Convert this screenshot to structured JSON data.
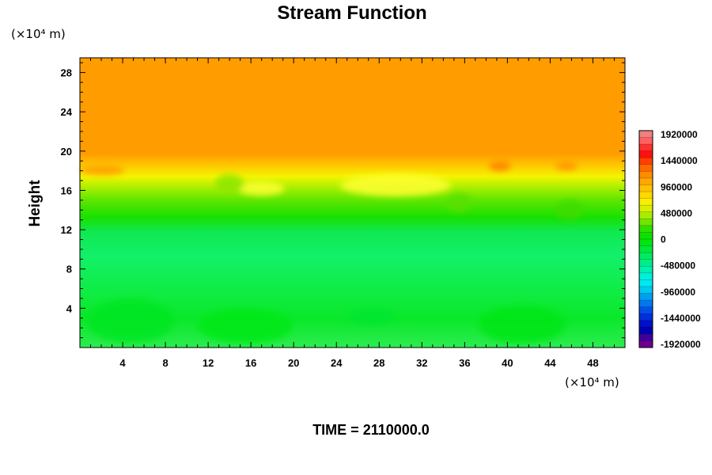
{
  "chart_data": {
    "type": "heatmap",
    "title": "Stream Function",
    "ylabel": "Height",
    "x_unit": "(×10⁴ m)",
    "y_unit": "(×10⁴ m)",
    "xlim": [
      0,
      51
    ],
    "ylim": [
      0,
      29.5
    ],
    "x_ticks": [
      4,
      8,
      12,
      16,
      20,
      24,
      28,
      32,
      36,
      40,
      44,
      48
    ],
    "y_ticks": [
      4,
      8,
      12,
      16,
      20,
      24,
      28
    ],
    "grid": false,
    "colorbar": {
      "placement": "right",
      "labels": [
        "1920000",
        "1440000",
        "960000",
        "480000",
        "0",
        "-480000",
        "-960000",
        "-1440000",
        "-1920000"
      ],
      "min": -1920000,
      "max": 1920000
    },
    "field_by_height": [
      {
        "height": 0,
        "value": -260000
      },
      {
        "height": 3,
        "value": -200000
      },
      {
        "height": 6,
        "value": -340000
      },
      {
        "height": 10,
        "value": -340000
      },
      {
        "height": 12,
        "value": -60000
      },
      {
        "height": 14,
        "value": 140000
      },
      {
        "height": 16,
        "value": 460000
      },
      {
        "height": 17.5,
        "value": 820000
      },
      {
        "height": 19.5,
        "value": 1100000
      },
      {
        "height": 29.5,
        "value": 1110000
      }
    ],
    "footer": "TIME = 2110000.0"
  }
}
